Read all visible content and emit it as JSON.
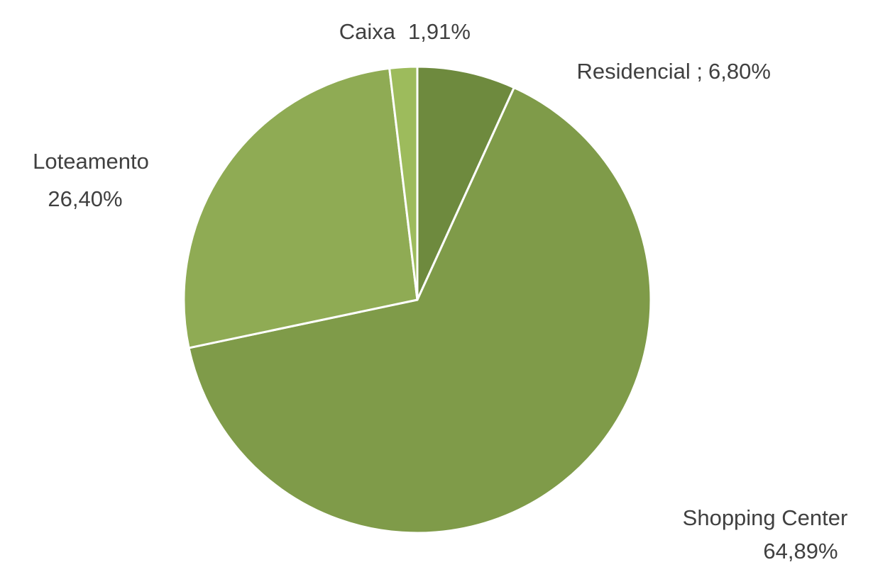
{
  "chart_data": {
    "type": "pie",
    "categories": [
      "Residencial ;",
      "Shopping Center",
      "Loteamento",
      "Caixa"
    ],
    "values": [
      6.8,
      64.89,
      26.4,
      1.91
    ],
    "value_labels": [
      "6,80%",
      "64,89%",
      "26,40%",
      "1,91%"
    ],
    "colors": [
      "#6e8a3e",
      "#7f9b49",
      "#8fab54",
      "#9dbb5c"
    ]
  }
}
